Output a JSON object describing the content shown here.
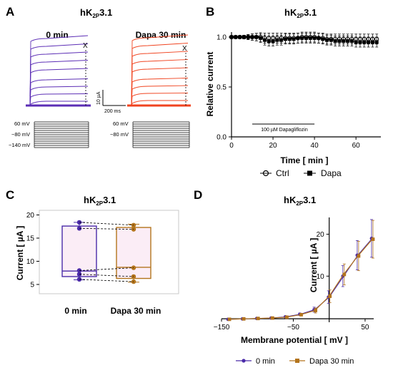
{
  "figure": {
    "colors": {
      "ctrl": "#5b2db5",
      "dapa": "#f0431f",
      "purple": "#4a2aa8",
      "gold": "#b3741c",
      "pink": "#f7d6ec"
    }
  },
  "panels": {
    "A": {
      "letter": "A",
      "title_main": "hK",
      "title_sub": "2P",
      "title_tail": "3.1",
      "label_left": "0 min",
      "label_right": "Dapa 30 min",
      "marker": "X",
      "scale_y": "10 µA",
      "scale_x": "200 ms",
      "protocol": [
        "60 mV",
        "−80 mV",
        "−140 mV"
      ]
    },
    "B": {
      "letter": "B",
      "title_main": "hK",
      "title_sub": "2P",
      "title_tail": "3.1",
      "ylabel": "Relative current",
      "xlabel": "Time [ min ]",
      "bar_label": "100 µM Dapagliflozin",
      "legend": [
        "Ctrl",
        "Dapa"
      ]
    },
    "C": {
      "letter": "C",
      "title_main": "hK",
      "title_sub": "2P",
      "title_tail": "3.1",
      "ylabel": "Current [ µA ]"
    },
    "D": {
      "letter": "D",
      "title_main": "hK",
      "title_sub": "2P",
      "title_tail": "3.1",
      "ylabel": "Current [ µA ]",
      "xlabel": "Membrane potential [ mV ]",
      "legend": [
        "0 min",
        "Dapa 30 min"
      ]
    }
  },
  "chart_data": [
    {
      "panel": "B",
      "type": "scatter",
      "x": [
        0,
        2,
        4,
        6,
        8,
        10,
        12,
        14,
        16,
        18,
        20,
        22,
        24,
        26,
        28,
        30,
        32,
        34,
        36,
        38,
        40,
        42,
        44,
        46,
        48,
        50,
        52,
        54,
        56,
        58,
        60,
        62,
        64,
        66,
        68,
        70
      ],
      "series": [
        {
          "name": "Ctrl",
          "values": [
            1.0,
            1.0,
            1.0,
            1.0,
            1.0,
            1.0,
            1.0,
            1.0,
            0.99,
            0.99,
            0.99,
            0.99,
            0.99,
            0.99,
            0.99,
            0.99,
            0.99,
            1.0,
            1.0,
            1.0,
            1.0,
            0.99,
            0.99,
            0.98,
            0.98,
            0.98,
            0.98,
            0.98,
            0.98,
            0.98,
            0.98,
            0.98,
            0.98,
            0.98,
            0.98,
            0.98
          ]
        },
        {
          "name": "Dapa",
          "values": [
            1.0,
            1.0,
            1.0,
            1.0,
            1.0,
            1.0,
            1.0,
            0.99,
            0.97,
            0.96,
            0.96,
            0.97,
            0.97,
            0.98,
            0.98,
            0.98,
            0.99,
            0.99,
            0.99,
            0.99,
            0.99,
            0.99,
            0.98,
            0.97,
            0.97,
            0.96,
            0.96,
            0.96,
            0.96,
            0.96,
            0.95,
            0.95,
            0.95,
            0.95,
            0.95,
            0.95
          ]
        }
      ],
      "error": 0.05,
      "xticks": [
        0,
        20,
        40,
        60
      ],
      "yticks": [
        0.0,
        0.5,
        1.0
      ],
      "xlim": [
        0,
        72
      ],
      "ylim": [
        0,
        1.05
      ],
      "drug_bar": [
        10,
        40
      ]
    },
    {
      "panel": "C",
      "type": "box",
      "categories": [
        "0 min",
        "Dapa 30 min"
      ],
      "boxes": [
        {
          "min": 6.0,
          "q1": 6.7,
          "median": 7.9,
          "q3": 17.6,
          "max": 18.4,
          "points": [
            18.4,
            17.1,
            8.0,
            7.2,
            6.1
          ]
        },
        {
          "min": 5.5,
          "q1": 6.3,
          "median": 8.7,
          "q3": 17.3,
          "max": 18.0,
          "points": [
            17.8,
            16.9,
            8.6,
            6.7,
            5.6
          ]
        }
      ],
      "yticks": [
        5,
        10,
        15,
        20
      ],
      "ylim": [
        3,
        21
      ]
    },
    {
      "panel": "D",
      "type": "line",
      "x": [
        -140,
        -120,
        -100,
        -80,
        -60,
        -40,
        -20,
        0,
        20,
        40,
        60
      ],
      "series": [
        {
          "name": "0 min",
          "values": [
            -0.3,
            -0.2,
            -0.1,
            0.0,
            0.3,
            0.9,
            2.0,
            5.0,
            10.0,
            15.0,
            19.0
          ],
          "error": [
            0.1,
            0.1,
            0.1,
            0.1,
            0.2,
            0.3,
            0.6,
            1.5,
            2.5,
            3.5,
            4.5
          ]
        },
        {
          "name": "Dapa 30 min",
          "values": [
            -0.3,
            -0.2,
            -0.1,
            0.0,
            0.2,
            0.8,
            1.8,
            5.2,
            10.4,
            14.8,
            18.8
          ],
          "error": [
            0.1,
            0.1,
            0.1,
            0.1,
            0.2,
            0.3,
            0.6,
            1.5,
            2.5,
            3.5,
            4.5
          ]
        }
      ],
      "xticks": [
        -150,
        -50,
        50
      ],
      "yticks": [
        10,
        20
      ],
      "xlim": [
        -150,
        62
      ],
      "ylim": [
        -1,
        24
      ]
    }
  ]
}
